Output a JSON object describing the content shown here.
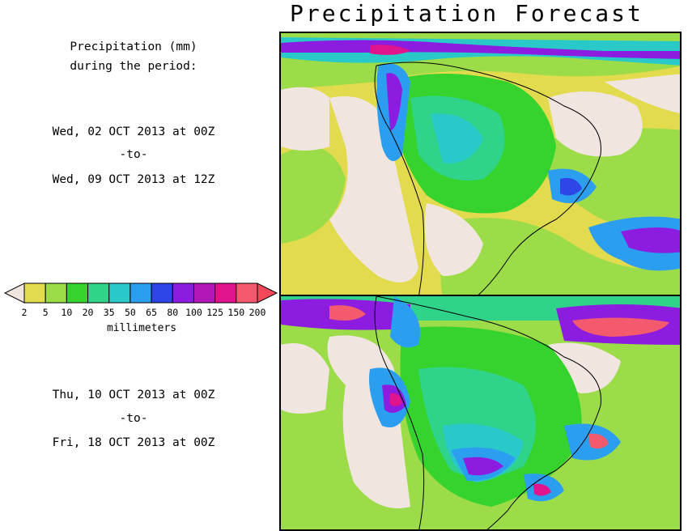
{
  "title": "Precipitation Forecast",
  "description": {
    "line1": "Precipitation (mm)",
    "line2": "during the period:"
  },
  "period1": {
    "start": "Wed, 02 OCT 2013 at 00Z",
    "separator": "-to-",
    "end": "Wed, 09 OCT 2013 at 12Z"
  },
  "period2": {
    "start": "Thu, 10 OCT 2013 at 00Z",
    "separator": "-to-",
    "end": "Fri, 18 OCT 2013 at 00Z"
  },
  "legend": {
    "units": "millimeters",
    "thresholds": [
      "2",
      "5",
      "10",
      "20",
      "35",
      "50",
      "65",
      "80",
      "100",
      "125",
      "150",
      "200"
    ],
    "colors": [
      "#f0e6df",
      "#e2db4e",
      "#9bdc48",
      "#36d32f",
      "#2fd38a",
      "#29c9c9",
      "#2c9ef0",
      "#2e45e8",
      "#8c1ce0",
      "#b218b8",
      "#e0148c",
      "#f45a6e",
      "#f4485a"
    ]
  }
}
